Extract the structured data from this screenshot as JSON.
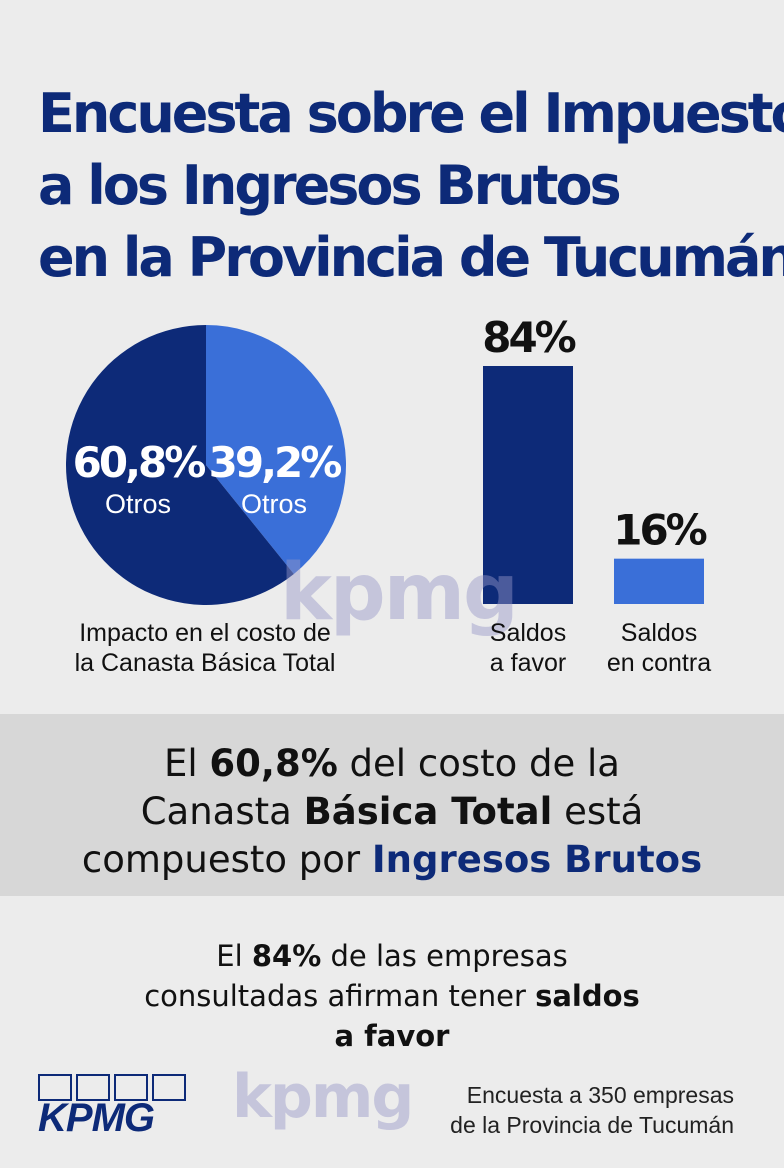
{
  "title": {
    "lines": [
      "Encuesta sobre el Impuesto",
      "a los Ingresos Brutos",
      "en la  Provincia de Tucumán"
    ]
  },
  "chart_data": [
    {
      "type": "pie",
      "title": "",
      "slices": [
        {
          "label": "Otros",
          "value": 60.8,
          "value_text": "60,8%",
          "color": "#0d2a78"
        },
        {
          "label": "Otros",
          "value": 39.2,
          "value_text": "39,2%",
          "color": "#3a6fd8"
        }
      ],
      "caption_lines": [
        "Impacto en el costo de",
        "la Canasta Básica Total"
      ]
    },
    {
      "type": "bar",
      "title": "",
      "categories": [
        "Saldos a favor",
        "Saldos en contra"
      ],
      "category_lines": [
        [
          "Saldos",
          "a favor"
        ],
        [
          "Saldos",
          "en contra"
        ]
      ],
      "values": [
        84,
        16
      ],
      "value_texts": [
        "84%",
        "16%"
      ],
      "colors": [
        "#0d2a78",
        "#3a6fd8"
      ],
      "ylim": [
        0,
        84
      ],
      "grid": false,
      "xlabel": "",
      "ylabel": ""
    }
  ],
  "highlight": {
    "line1": [
      "El ",
      "60,8%",
      " del costo de la"
    ],
    "line2": [
      "Canasta ",
      "Básica Total",
      " está"
    ],
    "line3": [
      "compuesto por ",
      "Ingresos Brutos"
    ]
  },
  "statement": {
    "line1": [
      "El ",
      "84%",
      " de las empresas"
    ],
    "line2": [
      "consultadas afirman tener ",
      "saldos"
    ],
    "line3": "a favor"
  },
  "footer": {
    "logo_text": "KPMG",
    "watermark": "kpmg",
    "note_lines": [
      "Encuesta a 350 empresas",
      "de la Provincia de Tucumán"
    ]
  },
  "colors": {
    "dark_blue": "#0d2a78",
    "light_blue": "#3a6fd8",
    "background": "#ececec",
    "band": "#d7d7d7"
  }
}
